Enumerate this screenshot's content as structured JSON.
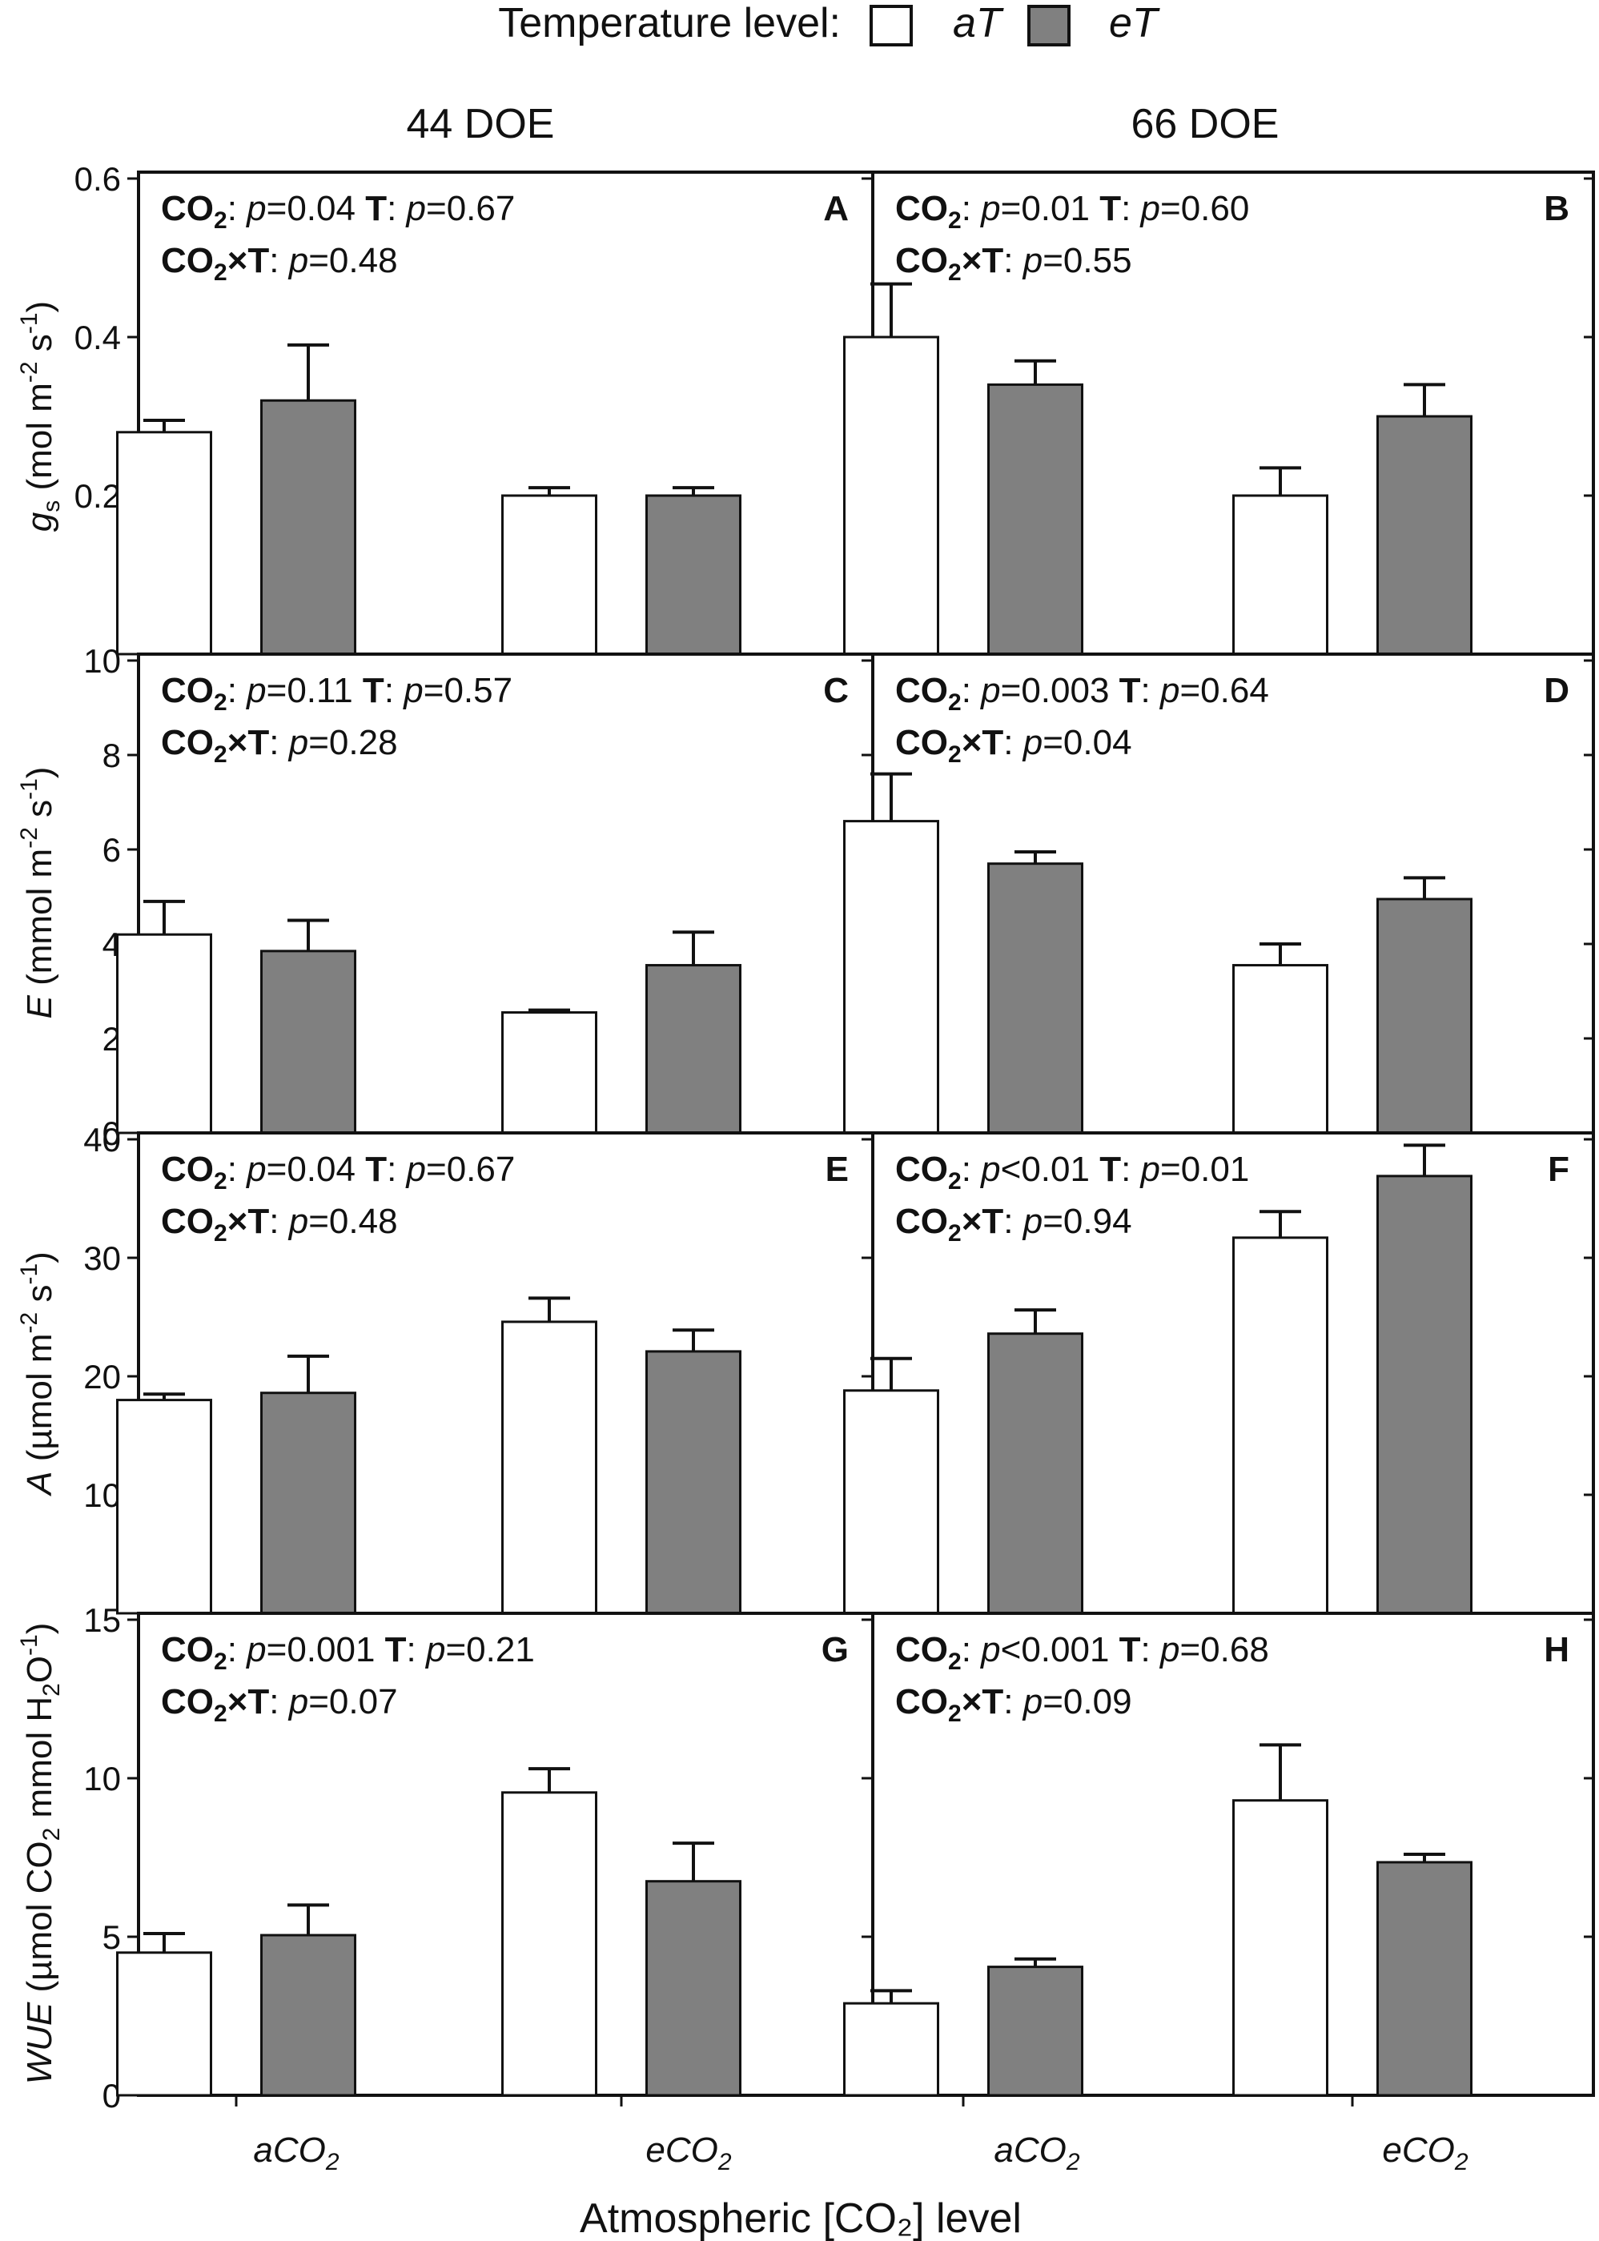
{
  "legend": {
    "title": "Temperature level:",
    "aT": "aT",
    "eT": "eT"
  },
  "columns": [
    "44 DOE",
    "66 DOE"
  ],
  "xlabel": "Atmospheric [CO₂] level",
  "colors": {
    "aT": "#ffffff",
    "eT": "#808080",
    "axis": "#111111"
  },
  "chart_data": [
    {
      "type": "bar",
      "panel": "A",
      "column": "44 DOE",
      "ylabel": "g_s (mol m-2 s-1)",
      "ylim": [
        0,
        0.6
      ],
      "yticks": [
        0.2,
        0.4,
        0.6
      ],
      "categories": [
        "aCO2",
        "eCO2"
      ],
      "series": [
        {
          "name": "aT",
          "values": [
            0.28,
            0.2
          ],
          "errors": [
            0.015,
            0.01
          ]
        },
        {
          "name": "eT",
          "values": [
            0.32,
            0.2
          ],
          "errors": [
            0.07,
            0.01
          ]
        }
      ],
      "stats": [
        "p=0.04",
        "p=0.67",
        "p=0.48"
      ]
    },
    {
      "type": "bar",
      "panel": "B",
      "column": "66 DOE",
      "ylabel": "g_s (mol m-2 s-1)",
      "ylim": [
        0,
        0.6
      ],
      "yticks": [
        0.2,
        0.4,
        0.6
      ],
      "categories": [
        "aCO2",
        "eCO2"
      ],
      "series": [
        {
          "name": "aT",
          "values": [
            0.4,
            0.2
          ],
          "errors": [
            0.067,
            0.035
          ]
        },
        {
          "name": "eT",
          "values": [
            0.34,
            0.3
          ],
          "errors": [
            0.03,
            0.04
          ]
        }
      ],
      "stats": [
        "p=0.01",
        "p=0.60",
        "p=0.55"
      ]
    },
    {
      "type": "bar",
      "panel": "C",
      "column": "44 DOE",
      "ylabel": "E (mmol m-2 s-1)",
      "ylim": [
        0,
        10
      ],
      "yticks": [
        0,
        2,
        4,
        6,
        8,
        10
      ],
      "categories": [
        "aCO2",
        "eCO2"
      ],
      "series": [
        {
          "name": "aT",
          "values": [
            4.2,
            2.55
          ],
          "errors": [
            0.7,
            0.05
          ]
        },
        {
          "name": "eT",
          "values": [
            3.85,
            3.55
          ],
          "errors": [
            0.65,
            0.7
          ]
        }
      ],
      "stats": [
        "p=0.11",
        "p=0.57",
        "p=0.28"
      ]
    },
    {
      "type": "bar",
      "panel": "D",
      "column": "66 DOE",
      "ylabel": "E (mmol m-2 s-1)",
      "ylim": [
        0,
        10
      ],
      "yticks": [
        0,
        2,
        4,
        6,
        8,
        10
      ],
      "categories": [
        "aCO2",
        "eCO2"
      ],
      "series": [
        {
          "name": "aT",
          "values": [
            6.6,
            3.55
          ],
          "errors": [
            1.0,
            0.45
          ]
        },
        {
          "name": "eT",
          "values": [
            5.7,
            4.95
          ],
          "errors": [
            0.25,
            0.45
          ]
        }
      ],
      "stats": [
        "p=0.003",
        "p=0.64",
        "p=0.04"
      ]
    },
    {
      "type": "bar",
      "panel": "E",
      "column": "44 DOE",
      "ylabel": "A (µmol m-2 s-1)",
      "ylim": [
        0,
        40
      ],
      "yticks": [
        10,
        20,
        30,
        40
      ],
      "categories": [
        "aCO2",
        "eCO2"
      ],
      "series": [
        {
          "name": "aT",
          "values": [
            18.0,
            24.6
          ],
          "errors": [
            0.5,
            2.0
          ]
        },
        {
          "name": "eT",
          "values": [
            18.6,
            22.1
          ],
          "errors": [
            3.1,
            1.8
          ]
        }
      ],
      "stats": [
        "p=0.04",
        "p=0.67",
        "p=0.48"
      ]
    },
    {
      "type": "bar",
      "panel": "F",
      "column": "66 DOE",
      "ylabel": "A (µmol m-2 s-1)",
      "ylim": [
        0,
        40
      ],
      "yticks": [
        10,
        20,
        30,
        40
      ],
      "categories": [
        "aCO2",
        "eCO2"
      ],
      "series": [
        {
          "name": "aT",
          "values": [
            18.8,
            31.7
          ],
          "errors": [
            2.7,
            2.2
          ]
        },
        {
          "name": "eT",
          "values": [
            23.6,
            36.9
          ],
          "errors": [
            2.0,
            2.6
          ]
        }
      ],
      "stats": [
        "p<0.01",
        "p=0.01",
        "p=0.94"
      ]
    },
    {
      "type": "bar",
      "panel": "G",
      "column": "44 DOE",
      "ylabel": "WUE (µmol CO2 mmol H2O-1)",
      "ylim": [
        0,
        15
      ],
      "yticks": [
        0,
        5,
        10,
        15
      ],
      "categories": [
        "aCO2",
        "eCO2"
      ],
      "series": [
        {
          "name": "aT",
          "values": [
            4.5,
            9.55
          ],
          "errors": [
            0.6,
            0.75
          ]
        },
        {
          "name": "eT",
          "values": [
            5.05,
            6.75
          ],
          "errors": [
            0.95,
            1.2
          ]
        }
      ],
      "stats": [
        "p=0.001",
        "p=0.21",
        "p=0.07"
      ]
    },
    {
      "type": "bar",
      "panel": "H",
      "column": "66 DOE",
      "ylabel": "WUE (µmol CO2 mmol H2O-1)",
      "ylim": [
        0,
        15
      ],
      "yticks": [
        0,
        5,
        10,
        15
      ],
      "categories": [
        "aCO2",
        "eCO2"
      ],
      "series": [
        {
          "name": "aT",
          "values": [
            2.9,
            9.3
          ],
          "errors": [
            0.4,
            1.75
          ]
        },
        {
          "name": "eT",
          "values": [
            4.05,
            7.35
          ],
          "errors": [
            0.25,
            0.25
          ]
        }
      ],
      "stats": [
        "p<0.001",
        "p=0.68",
        "p=0.09"
      ]
    }
  ]
}
